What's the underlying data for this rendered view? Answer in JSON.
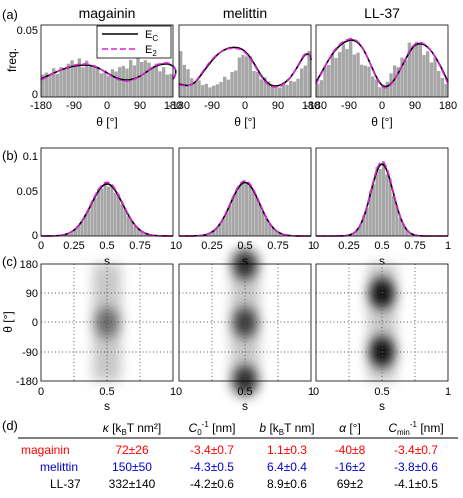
{
  "panel_labels": [
    "(a)",
    "(b)",
    "(c)",
    "(d)"
  ],
  "peptides": [
    "magainin",
    "melittin",
    "LL-37"
  ],
  "legend": {
    "entries": [
      "E",
      "E"
    ],
    "subscripts": [
      "C",
      "2"
    ],
    "colors": [
      "#000000",
      "#e020d8"
    ]
  },
  "colors": {
    "magainin": "#ff0000",
    "melittin": "#0000cc",
    "ll37": "#000000",
    "hist": "#a6a6a6",
    "model1": "#000000",
    "model2": "#e020d8"
  },
  "chart_data": [
    {
      "type": "bar",
      "panel": "(a)",
      "subplots": [
        "magainin",
        "melittin",
        "LL-37"
      ],
      "xlabel": "θ [°]",
      "ylabel": "freq.",
      "xlim": [
        -180,
        180
      ],
      "ylim": [
        0,
        0.055
      ],
      "xticks": [
        "-180",
        "-90",
        "0",
        "90",
        "180"
      ],
      "yticks": [
        "0",
        "0.05"
      ],
      "series": [
        {
          "name": "E",
          "subscript": "C",
          "style": "solid",
          "subplot": "magainin",
          "x": [
            -180,
            -135,
            -90,
            -45,
            0,
            45,
            90,
            135,
            180
          ],
          "y": [
            0.017,
            0.02,
            0.027,
            0.025,
            0.018,
            0.023,
            0.029,
            0.023,
            0.017
          ]
        },
        {
          "name": "E",
          "subscript": "2",
          "style": "dashed",
          "subplot": "magainin",
          "x": [
            -180,
            -135,
            -90,
            -45,
            0,
            45,
            90,
            135,
            180
          ],
          "y": [
            0.016,
            0.021,
            0.028,
            0.024,
            0.017,
            0.022,
            0.03,
            0.024,
            0.016
          ]
        },
        {
          "subplot": "melittin",
          "style": "solid",
          "x": [
            -180,
            -135,
            -90,
            -45,
            0,
            45,
            90,
            135,
            180
          ],
          "y": [
            0.032,
            0.012,
            0.008,
            0.015,
            0.033,
            0.015,
            0.008,
            0.012,
            0.032
          ]
        },
        {
          "subplot": "LL-37",
          "style": "solid",
          "x": [
            -180,
            -135,
            -90,
            -45,
            0,
            45,
            90,
            135,
            180
          ],
          "y": [
            0.009,
            0.03,
            0.041,
            0.024,
            0.008,
            0.025,
            0.042,
            0.03,
            0.009
          ]
        }
      ]
    },
    {
      "type": "bar",
      "panel": "(b)",
      "subplots": [
        "magainin",
        "melittin",
        "LL-37"
      ],
      "xlabel": "s",
      "xlim": [
        0,
        1
      ],
      "ylim": [
        0,
        0.12
      ],
      "xticks": [
        "0",
        "0.25",
        "0.5",
        "0.75",
        "1"
      ],
      "yticks": [
        "0",
        "0.05",
        "0.1"
      ],
      "gaussian_fits": [
        {
          "subplot": "magainin",
          "mean": 0.5,
          "peak": 0.071,
          "sd": 0.12
        },
        {
          "subplot": "melittin",
          "mean": 0.5,
          "peak": 0.073,
          "sd": 0.11
        },
        {
          "subplot": "LL-37",
          "mean": 0.5,
          "peak": 0.098,
          "sd": 0.085
        }
      ]
    },
    {
      "type": "heatmap",
      "panel": "(c)",
      "subplots": [
        "magainin",
        "melittin",
        "LL-37"
      ],
      "xlabel": "s",
      "ylabel": "θ [°]",
      "xlim": [
        0,
        1
      ],
      "ylim": [
        -180,
        180
      ],
      "xticks": [
        "0",
        "0.5",
        "1"
      ],
      "yticks": [
        "-180",
        "-90",
        "0",
        "90",
        "180"
      ],
      "grid": true,
      "density_peaks": [
        {
          "subplot": "magainin",
          "peaks": [
            {
              "s": 0.5,
              "theta": 0,
              "weight": 0.5
            }
          ]
        },
        {
          "subplot": "melittin",
          "peaks": [
            {
              "s": 0.5,
              "theta": 180,
              "weight": 0.85
            },
            {
              "s": 0.5,
              "theta": 0,
              "weight": 0.75
            },
            {
              "s": 0.5,
              "theta": -180,
              "weight": 0.85
            }
          ]
        },
        {
          "subplot": "LL-37",
          "peaks": [
            {
              "s": 0.5,
              "theta": 90,
              "weight": 1.0
            },
            {
              "s": 0.5,
              "theta": -90,
              "weight": 1.0
            }
          ]
        }
      ]
    },
    {
      "type": "table",
      "panel": "(d)",
      "columns": [
        {
          "label": "",
          "sym": "",
          "sup": "",
          "sub": "",
          "unit_pre": "",
          "unit_sub": "",
          "unit_post": ""
        },
        {
          "sym": "κ",
          "sup": "",
          "sub": "",
          "unit_pre": " [k",
          "unit_sub": "B",
          "unit_post": "T nm²]"
        },
        {
          "sym": "C",
          "sub": "0",
          "sup": "-1",
          "unit_pre": " [nm]",
          "unit_sub": "",
          "unit_post": ""
        },
        {
          "sym": "b",
          "sup": "",
          "sub": "",
          "unit_pre": " [k",
          "unit_sub": "B",
          "unit_post": "T nm]"
        },
        {
          "sym": "α",
          "sup": "",
          "sub": "",
          "unit_pre": " [°]",
          "unit_sub": "",
          "unit_post": ""
        },
        {
          "sym": "C",
          "sub": "min",
          "sup": "-1",
          "unit_pre": " [nm]",
          "unit_sub": "",
          "unit_post": ""
        }
      ],
      "rows": [
        {
          "name": "magainin",
          "color": "#ff0000",
          "values": [
            "72±26",
            "-3.4±0.7",
            "1.1±0.3",
            "-40±8",
            "-3.4±0.7"
          ]
        },
        {
          "name": "melittin",
          "color": "#0000cc",
          "values": [
            "150±50",
            "-4.3±0.5",
            "6.4±0.4",
            "-16±2",
            "-3.8±0.6"
          ]
        },
        {
          "name": "LL-37",
          "color": "#000000",
          "values": [
            "332±140",
            "-4.2±0.6",
            "8.9±0.6",
            "69±2",
            "-4.1±0.5"
          ]
        }
      ]
    }
  ]
}
